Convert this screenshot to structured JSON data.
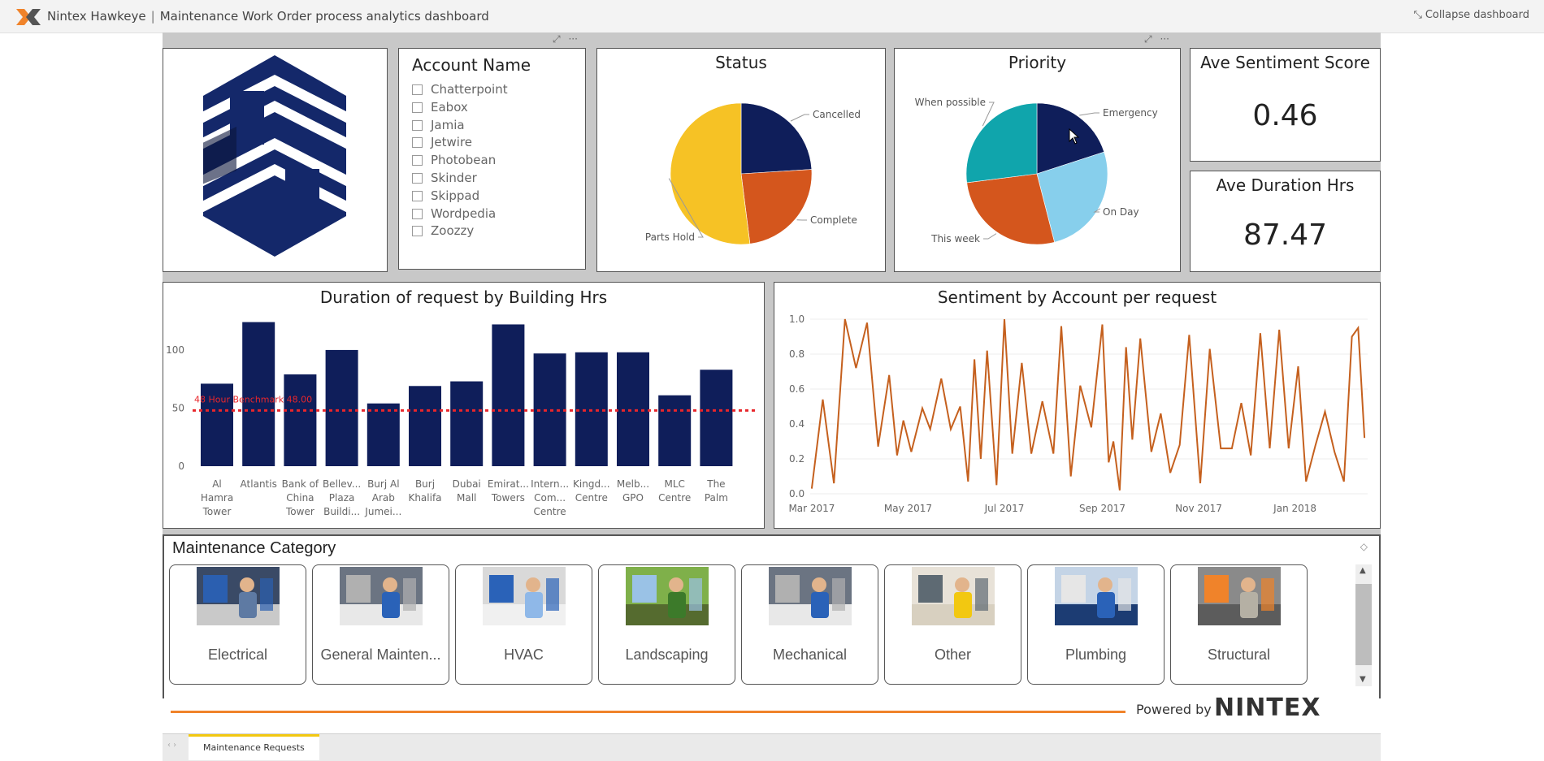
{
  "app": {
    "brand": "Nintex Hawkeye",
    "separator": "|",
    "title": "Maintenance Work Order process analytics dashboard",
    "collapse_label": "Collapse dashboard"
  },
  "slicer": {
    "title": "Account Name",
    "items": [
      "Chatterpoint",
      "Eabox",
      "Jamia",
      "Jetwire",
      "Photobean",
      "Skinder",
      "Skippad",
      "Wordpedia",
      "Zoozzy"
    ]
  },
  "status": {
    "title": "Status",
    "slices": [
      {
        "label": "Cancelled",
        "value": 24,
        "color": "#0f1e5a"
      },
      {
        "label": "Complete",
        "value": 24,
        "color": "#d4561d"
      },
      {
        "label": "Parts Hold",
        "value": 52,
        "color": "#f6c225"
      }
    ]
  },
  "priority": {
    "title": "Priority",
    "slices": [
      {
        "label": "Emergency",
        "value": 20,
        "color": "#0f1e5a"
      },
      {
        "label": "On Day",
        "value": 26,
        "color": "#87cfec"
      },
      {
        "label": "This week",
        "value": 27,
        "color": "#d4561d"
      },
      {
        "label": "When possible",
        "value": 27,
        "color": "#10a5ac"
      }
    ]
  },
  "kpis": {
    "sentiment": {
      "title": "Ave Sentiment Score",
      "value": "0.46"
    },
    "duration": {
      "title": "Ave Duration Hrs",
      "value": "87.47"
    }
  },
  "duration_chart": {
    "title": "Duration of request by Building Hrs",
    "benchmark_label": "48 Hour Benchmark 48.00"
  },
  "sentiment_chart": {
    "title": "Sentiment by Account per request"
  },
  "chart_data": [
    {
      "type": "bar",
      "title": "Duration of request by Building Hrs",
      "categories": [
        [
          "Al",
          "Hamra",
          "Tower"
        ],
        [
          "Atlantis"
        ],
        [
          "Bank of",
          "China",
          "Tower"
        ],
        [
          "Bellev...",
          "Plaza",
          "Buildi..."
        ],
        [
          "Burj Al",
          "Arab",
          "Jumei..."
        ],
        [
          "Burj",
          "Khalifa"
        ],
        [
          "Dubai",
          "Mall"
        ],
        [
          "Emirat...",
          "Towers"
        ],
        [
          "Intern...",
          "Com...",
          "Centre"
        ],
        [
          "Kingd...",
          "Centre"
        ],
        [
          "Melb...",
          "GPO"
        ],
        [
          "MLC",
          "Centre"
        ],
        [
          "The",
          "Palm"
        ]
      ],
      "values": [
        71,
        124,
        79,
        100,
        54,
        69,
        73,
        122,
        97,
        98,
        98,
        61,
        83
      ],
      "ylim": [
        0,
        130
      ],
      "yticks": [
        0,
        50,
        100
      ],
      "benchmark": 48,
      "color": "#0f1e5a",
      "benchmark_color": "#e8262b"
    },
    {
      "type": "line",
      "title": "Sentiment by Account per request",
      "x": [
        "2017-03-01",
        "2017-03-08",
        "2017-03-15",
        "2017-03-22",
        "2017-03-29",
        "2017-04-05",
        "2017-04-12",
        "2017-04-19",
        "2017-04-24",
        "2017-04-28",
        "2017-05-03",
        "2017-05-10",
        "2017-05-15",
        "2017-05-22",
        "2017-05-28",
        "2017-06-03",
        "2017-06-08",
        "2017-06-12",
        "2017-06-16",
        "2017-06-20",
        "2017-06-26",
        "2017-07-01",
        "2017-07-06",
        "2017-07-12",
        "2017-07-18",
        "2017-07-25",
        "2017-08-01",
        "2017-08-06",
        "2017-08-12",
        "2017-08-18",
        "2017-08-25",
        "2017-09-01",
        "2017-09-05",
        "2017-09-08",
        "2017-09-12",
        "2017-09-16",
        "2017-09-20",
        "2017-09-25",
        "2017-10-02",
        "2017-10-08",
        "2017-10-14",
        "2017-10-20",
        "2017-10-26",
        "2017-11-02",
        "2017-11-08",
        "2017-11-15",
        "2017-11-22",
        "2017-11-28",
        "2017-12-04",
        "2017-12-10",
        "2017-12-16",
        "2017-12-22",
        "2017-12-28",
        "2018-01-03",
        "2018-01-08",
        "2018-01-14",
        "2018-01-20",
        "2018-01-26",
        "2018-02-01",
        "2018-02-06",
        "2018-02-10",
        "2018-02-14"
      ],
      "y": [
        0.03,
        0.54,
        0.06,
        1.0,
        0.72,
        0.98,
        0.27,
        0.68,
        0.22,
        0.42,
        0.24,
        0.49,
        0.37,
        0.66,
        0.37,
        0.5,
        0.07,
        0.77,
        0.2,
        0.82,
        0.05,
        1.0,
        0.23,
        0.75,
        0.23,
        0.53,
        0.23,
        0.96,
        0.1,
        0.62,
        0.38,
        0.97,
        0.18,
        0.3,
        0.02,
        0.84,
        0.31,
        0.89,
        0.24,
        0.46,
        0.12,
        0.28,
        0.91,
        0.06,
        0.83,
        0.26,
        0.26,
        0.52,
        0.22,
        0.92,
        0.26,
        0.94,
        0.26,
        0.73,
        0.07,
        0.28,
        0.47,
        0.24,
        0.07,
        0.9,
        0.95,
        0.32
      ],
      "xticks": [
        "Mar 2017",
        "May 2017",
        "Jul 2017",
        "Sep 2017",
        "Nov 2017",
        "Jan 2018"
      ],
      "ylim": [
        0,
        1.0
      ],
      "yticks": [
        "0.0",
        "0.2",
        "0.4",
        "0.6",
        "0.8",
        "1.0"
      ],
      "color": "#c5601e"
    }
  ],
  "maintenance": {
    "title": "Maintenance Category",
    "categories": [
      {
        "label": "Electrical",
        "image": "electrician-photo"
      },
      {
        "label": "General Mainten...",
        "image": "mechanic-photo"
      },
      {
        "label": "HVAC",
        "image": "hvac-photo"
      },
      {
        "label": "Landscaping",
        "image": "garden-photo"
      },
      {
        "label": "Mechanical",
        "image": "mechanic-photo"
      },
      {
        "label": "Other",
        "image": "worker-photo"
      },
      {
        "label": "Plumbing",
        "image": "plumber-photo"
      },
      {
        "label": "Structural",
        "image": "construction-photo"
      }
    ]
  },
  "footer": {
    "powered_by": "Powered by",
    "brand": "NINTEX",
    "tab_label": "Maintenance Requests",
    "tab_arrows": "‹ ›"
  },
  "colors": {
    "navy": "#0f1e5a",
    "orange": "#d4561d",
    "yellow": "#f6c225",
    "accent_line": "#f0832a"
  }
}
